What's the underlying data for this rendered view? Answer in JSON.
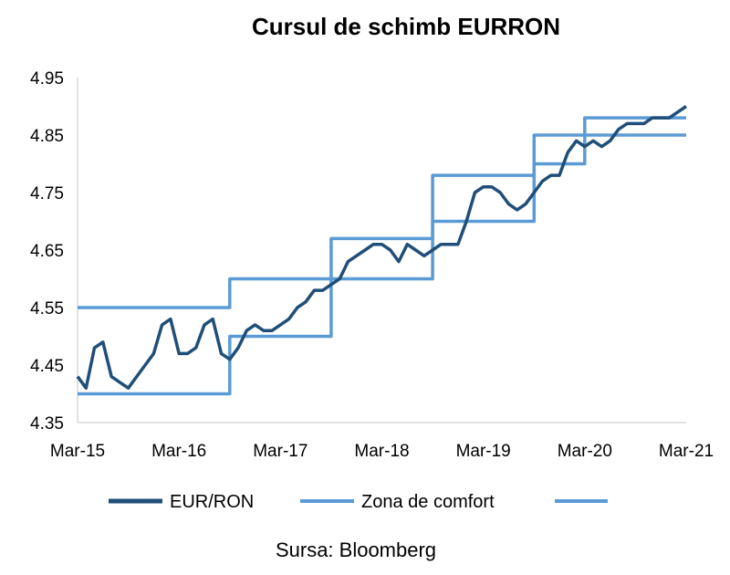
{
  "chart_data": {
    "type": "line",
    "title": "Cursul de schimb EURRON",
    "xlabel": "",
    "ylabel": "",
    "x_ticks": [
      "Mar-15",
      "Mar-16",
      "Mar-17",
      "Mar-18",
      "Mar-19",
      "Mar-20",
      "Mar-21"
    ],
    "y_ticks": [
      "4.35",
      "4.45",
      "4.55",
      "4.65",
      "4.75",
      "4.85",
      "4.95"
    ],
    "ylim": [
      4.35,
      4.95
    ],
    "xlim": [
      "2015-03-01",
      "2021-03-01"
    ],
    "grid": false,
    "legend_position": "bottom",
    "colors": {
      "eur_ron": "#1F4E79",
      "comfort": "#5B9BD5"
    },
    "series": [
      {
        "name": "EUR/RON",
        "x": [
          "2015-03",
          "2015-04",
          "2015-05",
          "2015-06",
          "2015-07",
          "2015-08",
          "2015-09",
          "2015-10",
          "2015-11",
          "2015-12",
          "2016-01",
          "2016-02",
          "2016-03",
          "2016-04",
          "2016-05",
          "2016-06",
          "2016-07",
          "2016-08",
          "2016-09",
          "2016-10",
          "2016-11",
          "2016-12",
          "2017-01",
          "2017-02",
          "2017-03",
          "2017-04",
          "2017-05",
          "2017-06",
          "2017-07",
          "2017-08",
          "2017-09",
          "2017-10",
          "2017-11",
          "2017-12",
          "2018-01",
          "2018-02",
          "2018-03",
          "2018-04",
          "2018-05",
          "2018-06",
          "2018-07",
          "2018-08",
          "2018-09",
          "2018-10",
          "2018-11",
          "2018-12",
          "2019-01",
          "2019-02",
          "2019-03",
          "2019-04",
          "2019-05",
          "2019-06",
          "2019-07",
          "2019-08",
          "2019-09",
          "2019-10",
          "2019-11",
          "2019-12",
          "2020-01",
          "2020-02",
          "2020-03",
          "2020-04",
          "2020-05",
          "2020-06",
          "2020-07",
          "2020-08",
          "2020-09",
          "2020-10",
          "2020-11",
          "2020-12",
          "2021-01",
          "2021-02",
          "2021-03"
        ],
        "values": [
          4.43,
          4.41,
          4.48,
          4.49,
          4.43,
          4.42,
          4.41,
          4.43,
          4.45,
          4.47,
          4.52,
          4.53,
          4.47,
          4.47,
          4.48,
          4.52,
          4.53,
          4.47,
          4.46,
          4.48,
          4.51,
          4.52,
          4.51,
          4.51,
          4.52,
          4.53,
          4.55,
          4.56,
          4.58,
          4.58,
          4.59,
          4.6,
          4.63,
          4.64,
          4.65,
          4.66,
          4.66,
          4.65,
          4.63,
          4.66,
          4.65,
          4.64,
          4.65,
          4.66,
          4.66,
          4.66,
          4.7,
          4.75,
          4.76,
          4.76,
          4.75,
          4.73,
          4.72,
          4.73,
          4.75,
          4.77,
          4.78,
          4.78,
          4.82,
          4.84,
          4.83,
          4.84,
          4.83,
          4.84,
          4.86,
          4.87,
          4.87,
          4.87,
          4.88,
          4.88,
          4.88,
          4.89,
          4.9
        ]
      },
      {
        "name": "Zona de comfort",
        "x": [
          "2015-03",
          "2016-09",
          "2016-09",
          "2017-09",
          "2017-09",
          "2018-09",
          "2018-09",
          "2019-09",
          "2019-09",
          "2020-03",
          "2020-03",
          "2020-09",
          "2020-09",
          "2021-03"
        ],
        "values": [
          4.4,
          4.4,
          4.5,
          4.5,
          4.6,
          4.6,
          4.7,
          4.7,
          4.8,
          4.8,
          4.85,
          4.85,
          4.85,
          4.85
        ]
      },
      {
        "name": "",
        "x": [
          "2015-03",
          "2016-09",
          "2016-09",
          "2017-09",
          "2017-09",
          "2018-09",
          "2018-09",
          "2019-09",
          "2019-09",
          "2020-03",
          "2020-03",
          "2020-09",
          "2020-09",
          "2021-03"
        ],
        "values": [
          4.55,
          4.55,
          4.6,
          4.6,
          4.67,
          4.67,
          4.78,
          4.78,
          4.85,
          4.85,
          4.88,
          4.88,
          4.88,
          4.88
        ]
      }
    ]
  },
  "legend": {
    "eur_ron": "EUR/RON",
    "comfort": "Zona de comfort"
  },
  "source": "Sursa: Bloomberg"
}
